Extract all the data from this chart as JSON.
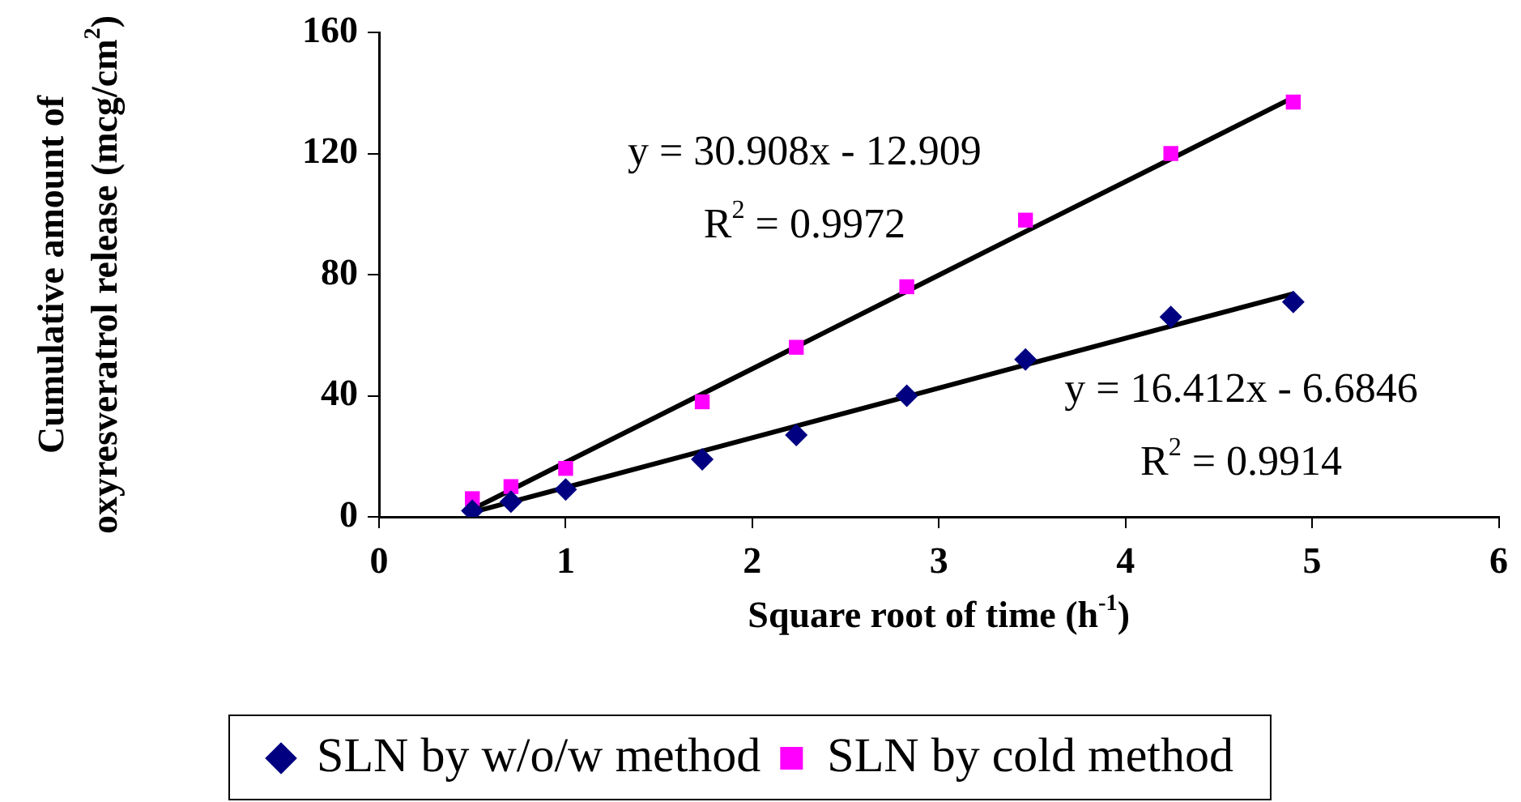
{
  "chart_data": {
    "type": "scatter",
    "xlabel": "Square root of time (h$^{-1}$)",
    "ylabel": "Cumulative amount of oxyresveratrol release (mcg/cm$^{2}$)",
    "x": [
      0.5,
      0.707,
      1,
      1.732,
      2.236,
      2.828,
      3.464,
      4.243,
      4.899
    ],
    "series": [
      {
        "name": "SLN by w/o/w method",
        "color": "#000080",
        "marker": "diamond",
        "values": [
          2,
          5,
          9,
          19,
          27,
          40,
          52,
          66,
          71
        ]
      },
      {
        "name": "SLN by cold method",
        "color": "#ff00ff",
        "marker": "square",
        "values": [
          6,
          10,
          16,
          38,
          56,
          76,
          98,
          120,
          137
        ]
      },
      {
        "type": "line",
        "color": "#000000",
        "marker": "none",
        "values": [
          2.5,
          8.9,
          18.0,
          40.6,
          56.2,
          74.5,
          94.2,
          118.2,
          138.5
        ]
      },
      {
        "type": "line",
        "color": "#000000",
        "marker": "none",
        "values": [
          1.5,
          4.9,
          9.7,
          21.7,
          30.0,
          39.7,
          50.2,
          63.0,
          73.7
        ]
      }
    ],
    "annotations": [
      "y = 30.908x - 12.909",
      "R$^{2}$ = 0.9972",
      "y = 16.412x - 6.6846",
      "R$^{2}$ = 0.9914"
    ],
    "xlim": [
      0,
      6
    ],
    "xticks": [
      0,
      1,
      2,
      3,
      4,
      5,
      6
    ],
    "ylim": [
      0,
      160
    ],
    "yticks": [
      0,
      40,
      80,
      120,
      160
    ],
    "grid": false,
    "legend": "bottom"
  }
}
